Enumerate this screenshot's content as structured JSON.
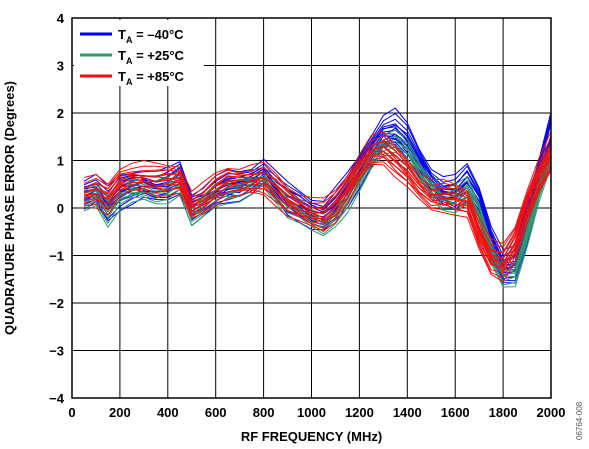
{
  "chart_data": {
    "type": "line",
    "xlabel": "RF FREQUENCY (MHz)",
    "ylabel": "QUADRATURE PHASE ERROR (Degrees)",
    "xlim": [
      0,
      2000
    ],
    "ylim": [
      -4,
      4
    ],
    "xticks": [
      0,
      200,
      400,
      600,
      800,
      1000,
      1200,
      1400,
      1600,
      1800,
      2000
    ],
    "yticks": [
      -4,
      -3,
      -2,
      -1,
      0,
      1,
      2,
      3,
      4
    ],
    "grid": true,
    "legend_position": "top-left",
    "figure_id": "06764-008",
    "x": [
      50,
      100,
      150,
      200,
      250,
      300,
      350,
      400,
      450,
      500,
      550,
      600,
      650,
      700,
      750,
      800,
      850,
      900,
      950,
      1000,
      1050,
      1100,
      1150,
      1200,
      1250,
      1300,
      1350,
      1400,
      1450,
      1500,
      1550,
      1600,
      1650,
      1700,
      1750,
      1800,
      1850,
      1900,
      1950,
      2000
    ],
    "series": [
      {
        "name": "T_A = –40°C",
        "legend_main": "T",
        "legend_sub": "A",
        "legend_rest": " = –40°C",
        "color": "#0000ee",
        "curves": [
          [
            0.3,
            0.4,
            0.1,
            0.35,
            0.45,
            0.5,
            0.45,
            0.5,
            0.65,
            0.0,
            0.15,
            0.35,
            0.45,
            0.45,
            0.55,
            0.75,
            0.45,
            0.2,
            0.05,
            -0.1,
            -0.15,
            0.1,
            0.4,
            0.8,
            1.2,
            1.55,
            1.6,
            1.35,
            0.9,
            0.55,
            0.35,
            0.35,
            0.55,
            0.1,
            -0.7,
            -1.25,
            -1.2,
            -0.3,
            0.6,
            1.4
          ],
          [
            0.1,
            0.25,
            -0.1,
            0.15,
            0.25,
            0.35,
            0.3,
            0.35,
            0.5,
            -0.2,
            -0.05,
            0.2,
            0.3,
            0.35,
            0.45,
            0.65,
            0.35,
            0.05,
            -0.1,
            -0.3,
            -0.35,
            -0.1,
            0.2,
            0.6,
            1.0,
            1.4,
            1.5,
            1.25,
            0.85,
            0.45,
            0.2,
            0.15,
            0.35,
            -0.1,
            -0.9,
            -1.45,
            -1.4,
            -0.55,
            0.4,
            1.2
          ],
          [
            0.45,
            0.55,
            0.25,
            0.5,
            0.6,
            0.65,
            0.6,
            0.65,
            0.8,
            0.15,
            0.3,
            0.5,
            0.6,
            0.6,
            0.7,
            0.9,
            0.6,
            0.35,
            0.2,
            0.05,
            0.0,
            0.25,
            0.55,
            0.95,
            1.4,
            1.8,
            1.9,
            1.6,
            1.1,
            0.7,
            0.5,
            0.5,
            0.75,
            0.3,
            -0.5,
            -1.05,
            -1.0,
            -0.05,
            0.9,
            1.9
          ]
        ]
      },
      {
        "name": "T_A = +25°C",
        "legend_main": "T",
        "legend_sub": "A",
        "legend_rest": " = +25°C",
        "color": "#2e9a6e",
        "curves": [
          [
            0.25,
            0.35,
            0.05,
            0.35,
            0.45,
            0.45,
            0.4,
            0.45,
            0.6,
            -0.05,
            0.15,
            0.35,
            0.45,
            0.45,
            0.5,
            0.65,
            0.4,
            0.15,
            0.0,
            -0.15,
            -0.25,
            -0.05,
            0.3,
            0.7,
            1.1,
            1.4,
            1.45,
            1.25,
            0.8,
            0.45,
            0.25,
            0.3,
            0.45,
            -0.05,
            -0.85,
            -1.3,
            -1.25,
            -0.45,
            0.45,
            1.2
          ],
          [
            0.05,
            0.2,
            -0.2,
            0.15,
            0.25,
            0.3,
            0.25,
            0.3,
            0.45,
            -0.25,
            -0.05,
            0.2,
            0.3,
            0.3,
            0.4,
            0.55,
            0.3,
            0.0,
            -0.15,
            -0.35,
            -0.45,
            -0.2,
            0.1,
            0.5,
            0.95,
            1.25,
            1.3,
            1.1,
            0.65,
            0.3,
            0.1,
            0.1,
            0.3,
            -0.25,
            -1.05,
            -1.5,
            -1.45,
            -0.65,
            0.25,
            1.0
          ]
        ]
      },
      {
        "name": "T_A = +85°C",
        "legend_main": "T",
        "legend_sub": "A",
        "legend_rest": " = +85°C",
        "color": "#ee1111",
        "curves": [
          [
            0.3,
            0.35,
            0.2,
            0.55,
            0.65,
            0.65,
            0.6,
            0.6,
            0.6,
            0.05,
            0.2,
            0.4,
            0.55,
            0.55,
            0.6,
            0.6,
            0.4,
            0.15,
            0.0,
            -0.1,
            -0.15,
            0.05,
            0.4,
            0.85,
            1.2,
            1.25,
            1.0,
            0.75,
            0.45,
            0.25,
            0.25,
            0.2,
            0.1,
            -0.55,
            -1.05,
            -1.15,
            -0.75,
            0.05,
            0.7,
            1.2
          ],
          [
            0.15,
            0.2,
            0.05,
            0.4,
            0.5,
            0.5,
            0.45,
            0.45,
            0.45,
            -0.1,
            0.05,
            0.25,
            0.4,
            0.4,
            0.45,
            0.45,
            0.25,
            0.0,
            -0.15,
            -0.25,
            -0.3,
            -0.1,
            0.25,
            0.7,
            1.05,
            1.1,
            0.85,
            0.6,
            0.3,
            0.1,
            0.1,
            0.05,
            -0.05,
            -0.75,
            -1.25,
            -1.35,
            -0.95,
            -0.2,
            0.45,
            0.95
          ],
          [
            0.45,
            0.5,
            0.35,
            0.7,
            0.8,
            0.8,
            0.75,
            0.75,
            0.75,
            0.2,
            0.35,
            0.55,
            0.7,
            0.7,
            0.75,
            0.75,
            0.55,
            0.3,
            0.15,
            0.05,
            0.0,
            0.2,
            0.55,
            1.0,
            1.35,
            1.4,
            1.15,
            0.9,
            0.6,
            0.4,
            0.4,
            0.35,
            0.25,
            -0.35,
            -0.85,
            -0.95,
            -0.55,
            0.25,
            0.9,
            1.4
          ]
        ]
      }
    ]
  }
}
